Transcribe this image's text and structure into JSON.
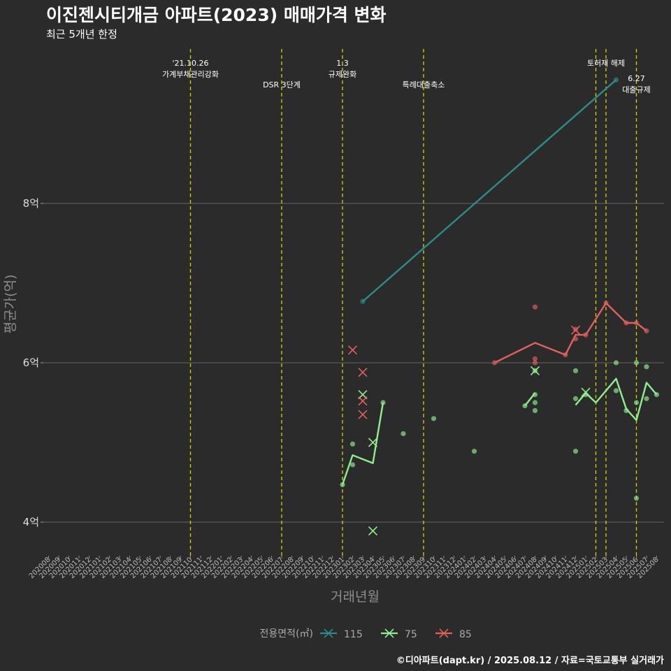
{
  "header": {
    "title": "이진젠시티개금 아파트(2023) 매매가격 변화",
    "subtitle": "최근 5개년 한정",
    "credit": "©디아파트(dapt.kr) / 2025.08.12 / 자료=국토교통부 실거래가"
  },
  "chart_data": {
    "type": "line",
    "title": "이진젠시티개금 아파트(2023) 매매가격 변화",
    "subtitle": "최근 5개년 한정",
    "xlabel": "거래년월",
    "ylabel": "평균가(억)",
    "months": [
      "202008",
      "202009",
      "202010",
      "202011",
      "202012",
      "202101",
      "202102",
      "202103",
      "202104",
      "202105",
      "202106",
      "202107",
      "202108",
      "202109",
      "202110",
      "202111",
      "202112",
      "202201",
      "202202",
      "202203",
      "202204",
      "202205",
      "202206",
      "202207",
      "202208",
      "202209",
      "202210",
      "202211",
      "202212",
      "202301",
      "202302",
      "202303",
      "202304",
      "202305",
      "202306",
      "202307",
      "202308",
      "202309",
      "202310",
      "202311",
      "202312",
      "202401",
      "202402",
      "202403",
      "202404",
      "202405",
      "202406",
      "202407",
      "202408",
      "202409",
      "202410",
      "202411",
      "202412",
      "202501",
      "202502",
      "202503",
      "202504",
      "202505",
      "202506",
      "202507",
      "202508"
    ],
    "yticks": [
      {
        "value": 4,
        "label": "4억"
      },
      {
        "value": 6,
        "label": "6억"
      },
      {
        "value": 8,
        "label": "8억"
      }
    ],
    "ylim": [
      3.6,
      9.9
    ],
    "grid": true,
    "legend": {
      "title": "전용면적(㎡)",
      "position": "bottom"
    },
    "events": [
      {
        "month": "202110",
        "label": [
          "'21.10.26",
          "가계부채관리강화"
        ],
        "row": 0
      },
      {
        "month": "202207",
        "label": [
          "DSR 3단계"
        ],
        "row": 1
      },
      {
        "month": "202301",
        "label": [
          "1.3",
          "규제완화"
        ],
        "row": 0
      },
      {
        "month": "202309",
        "label": [
          "특례대출축소"
        ],
        "row": 1
      },
      {
        "month": "202502",
        "label": [],
        "row": 0
      },
      {
        "month": "202503",
        "label": [
          "토허제 해제"
        ],
        "row": 0
      },
      {
        "month": "202506",
        "label": [
          "6.27",
          "대출규제"
        ],
        "row": 1
      }
    ],
    "series": [
      {
        "name": "115",
        "color": "#2e8b8b",
        "line": [
          [
            "202303",
            6.77
          ],
          [
            "202504",
            9.55
          ]
        ],
        "points": [
          [
            "202303",
            6.77
          ],
          [
            "202504",
            9.55
          ]
        ],
        "crosses": []
      },
      {
        "name": "75",
        "color": "#90ee90",
        "line": [
          [
            "202301",
            4.47
          ],
          [
            "202302",
            4.84
          ],
          [
            "202304",
            4.74
          ],
          [
            "202305",
            5.5
          ],
          null,
          [
            "202407",
            5.46
          ],
          [
            "202408",
            5.62
          ],
          null,
          [
            "202412",
            5.47
          ],
          [
            "202501",
            5.62
          ],
          [
            "202502",
            5.5
          ],
          [
            "202504",
            5.8
          ],
          [
            "202505",
            5.42
          ],
          [
            "202506",
            5.28
          ],
          [
            "202507",
            5.75
          ],
          [
            "202508",
            5.6
          ]
        ],
        "points": [
          [
            "202301",
            4.47
          ],
          [
            "202302",
            4.72
          ],
          [
            "202302",
            4.98
          ],
          [
            "202305",
            5.5
          ],
          [
            "202307",
            5.11
          ],
          [
            "202310",
            5.3
          ],
          [
            "202402",
            4.89
          ],
          [
            "202407",
            5.46
          ],
          [
            "202408",
            5.4
          ],
          [
            "202408",
            5.5
          ],
          [
            "202408",
            5.6
          ],
          [
            "202408",
            5.9
          ],
          [
            "202412",
            4.89
          ],
          [
            "202412",
            5.55
          ],
          [
            "202412",
            5.9
          ],
          [
            "202501",
            5.6
          ],
          [
            "202504",
            5.65
          ],
          [
            "202504",
            6.0
          ],
          [
            "202505",
            5.4
          ],
          [
            "202506",
            4.3
          ],
          [
            "202506",
            5.5
          ],
          [
            "202506",
            6.0
          ],
          [
            "202507",
            5.55
          ],
          [
            "202507",
            5.95
          ],
          [
            "202508",
            5.6
          ]
        ],
        "crosses": [
          [
            "202303",
            5.6
          ],
          [
            "202304",
            5.0
          ],
          [
            "202304",
            3.89
          ],
          [
            "202408",
            5.9
          ],
          [
            "202501",
            5.63
          ]
        ]
      },
      {
        "name": "85",
        "color": "#e06060",
        "line": [
          [
            "202404",
            6.0
          ],
          [
            "202408",
            6.25
          ],
          [
            "202411",
            6.1
          ],
          [
            "202412",
            6.35
          ],
          [
            "202501",
            6.35
          ],
          [
            "202503",
            6.75
          ],
          [
            "202505",
            6.5
          ],
          [
            "202506",
            6.5
          ],
          [
            "202507",
            6.4
          ]
        ],
        "points": [
          [
            "202404",
            6.0
          ],
          [
            "202408",
            6.0
          ],
          [
            "202408",
            6.05
          ],
          [
            "202408",
            6.7
          ],
          [
            "202411",
            6.1
          ],
          [
            "202412",
            6.3
          ],
          [
            "202412",
            6.42
          ],
          [
            "202501",
            6.35
          ],
          [
            "202503",
            6.75
          ],
          [
            "202505",
            6.5
          ],
          [
            "202506",
            6.5
          ],
          [
            "202507",
            6.4
          ]
        ],
        "crosses": [
          [
            "202302",
            6.16
          ],
          [
            "202303",
            5.88
          ],
          [
            "202303",
            5.52
          ],
          [
            "202303",
            5.35
          ],
          [
            "202412",
            6.41
          ]
        ]
      }
    ]
  }
}
